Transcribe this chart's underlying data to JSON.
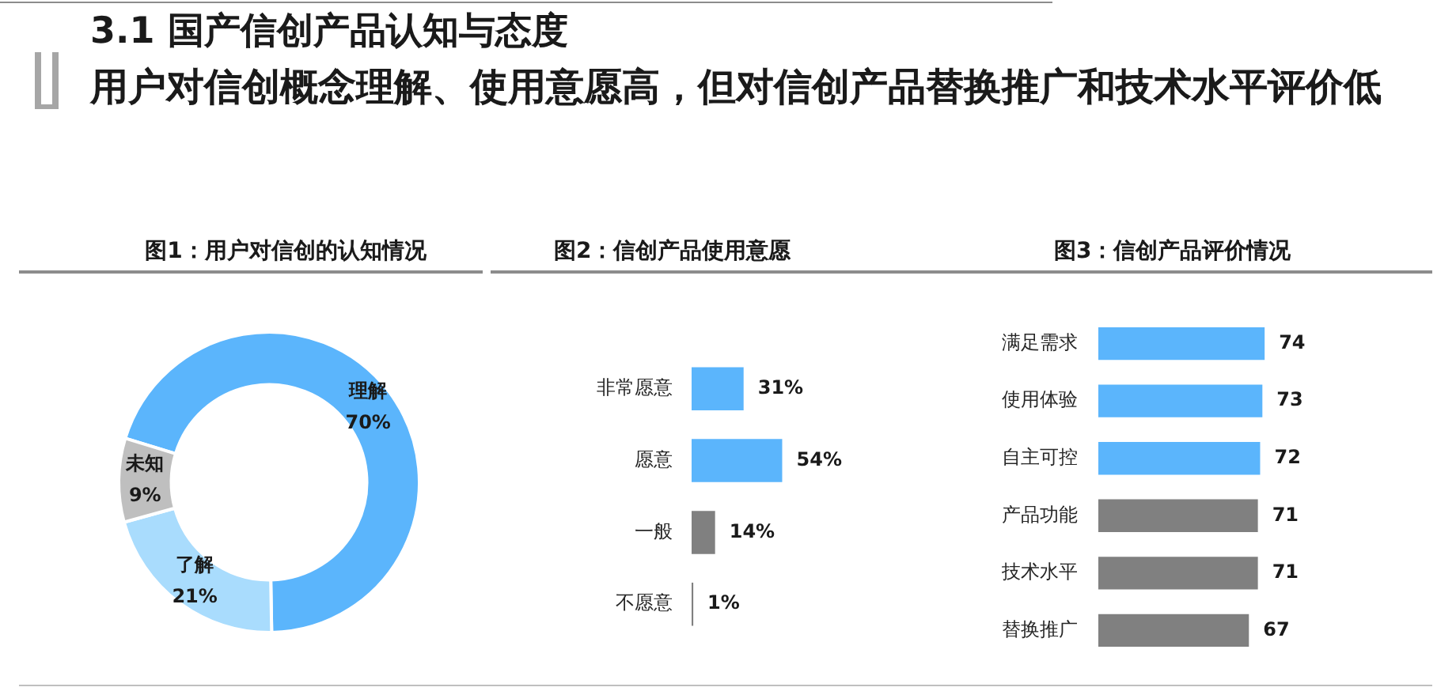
{
  "chart_data": [
    {
      "type": "other",
      "title": "3.1 国产信创产品认知与态度",
      "subtitle": "用户对信创概念理解、使用意愿高，但对信创产品替换推广和技术水平评价低"
    },
    {
      "type": "donut",
      "title": "图1：用户对信创的认知情况",
      "categories": [
        "理解",
        "了解",
        "未知"
      ],
      "values": [
        70,
        21,
        9
      ],
      "colors": [
        "#5bb5fc",
        "#a9dcfd",
        "#bfbfbf"
      ],
      "value_labels": [
        "70%",
        "21%",
        "9%"
      ]
    },
    {
      "type": "bar",
      "orientation": "horizontal",
      "title": "图2：信创产品使用意愿",
      "categories": [
        "非常愿意",
        "愿意",
        "一般",
        "不愿意"
      ],
      "values": [
        31,
        54,
        14,
        1
      ],
      "colors": [
        "#5bb5fc",
        "#5bb5fc",
        "#808080",
        "#808080"
      ],
      "value_labels": [
        "31%",
        "54%",
        "14%",
        "1%"
      ],
      "tick_labels": "y"
    },
    {
      "type": "bar",
      "orientation": "horizontal",
      "title": "图3：信创产品评价情况",
      "categories": [
        "满足需求",
        "使用体验",
        "自主可控",
        "产品功能",
        "技术水平",
        "替换推广"
      ],
      "values": [
        74,
        73,
        72,
        71,
        71,
        67
      ],
      "colors": [
        "#5bb5fc",
        "#5bb5fc",
        "#5bb5fc",
        "#808080",
        "#808080",
        "#808080"
      ],
      "data_labels": true,
      "tick_labels": "y"
    }
  ]
}
